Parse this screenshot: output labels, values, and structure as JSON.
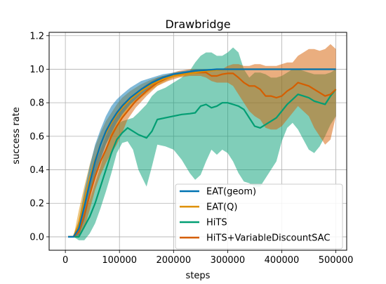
{
  "chart_data": {
    "type": "line",
    "title": "Drawbridge",
    "xlabel": "steps",
    "ylabel": "success rate",
    "xlim": [
      -30000,
      520000
    ],
    "ylim": [
      -0.08,
      1.22
    ],
    "xticks": [
      0,
      100000,
      200000,
      300000,
      400000,
      500000
    ],
    "xtick_labels": [
      "0",
      "100000",
      "200000",
      "300000",
      "400000",
      "500000"
    ],
    "yticks": [
      0.0,
      0.2,
      0.4,
      0.6,
      0.8,
      1.0,
      1.2
    ],
    "ytick_labels": [
      "0.0",
      "0.2",
      "0.4",
      "0.6",
      "0.8",
      "1.0",
      "1.2"
    ],
    "grid": true,
    "legend_position": "lower-right",
    "series": [
      {
        "name": "HiTS",
        "color": "#029e73",
        "x": [
          5000,
          15000,
          25000,
          35000,
          45000,
          55000,
          65000,
          75000,
          85000,
          95000,
          105000,
          115000,
          125000,
          135000,
          150000,
          160000,
          170000,
          185000,
          200000,
          215000,
          230000,
          240000,
          250000,
          260000,
          270000,
          280000,
          290000,
          300000,
          310000,
          320000,
          330000,
          340000,
          350000,
          360000,
          370000,
          380000,
          390000,
          400000,
          410000,
          420000,
          430000,
          440000,
          450000,
          460000,
          470000,
          480000,
          490000,
          500000
        ],
        "values": [
          0.0,
          0.0,
          0.0,
          0.06,
          0.12,
          0.2,
          0.3,
          0.4,
          0.5,
          0.58,
          0.62,
          0.65,
          0.63,
          0.61,
          0.59,
          0.63,
          0.7,
          0.71,
          0.72,
          0.73,
          0.735,
          0.74,
          0.78,
          0.79,
          0.77,
          0.78,
          0.8,
          0.8,
          0.79,
          0.78,
          0.76,
          0.71,
          0.66,
          0.65,
          0.67,
          0.69,
          0.71,
          0.75,
          0.79,
          0.82,
          0.85,
          0.84,
          0.83,
          0.81,
          0.8,
          0.79,
          0.84,
          0.88
        ],
        "lower": [
          0.0,
          0.0,
          -0.02,
          -0.02,
          0.02,
          0.08,
          0.17,
          0.27,
          0.38,
          0.5,
          0.56,
          0.57,
          0.52,
          0.4,
          0.3,
          0.42,
          0.55,
          0.54,
          0.52,
          0.46,
          0.38,
          0.34,
          0.37,
          0.45,
          0.52,
          0.49,
          0.52,
          0.5,
          0.45,
          0.38,
          0.33,
          0.32,
          0.3,
          0.3,
          0.35,
          0.4,
          0.45,
          0.57,
          0.65,
          0.68,
          0.64,
          0.58,
          0.52,
          0.5,
          0.54,
          0.6,
          0.67,
          0.72
        ],
        "upper": [
          0.0,
          0.0,
          0.02,
          0.12,
          0.22,
          0.32,
          0.42,
          0.53,
          0.62,
          0.67,
          0.69,
          0.7,
          0.71,
          0.74,
          0.79,
          0.84,
          0.87,
          0.89,
          0.92,
          0.95,
          0.99,
          1.04,
          1.08,
          1.1,
          1.1,
          1.08,
          1.08,
          1.1,
          1.13,
          1.1,
          1.0,
          0.95,
          0.98,
          0.98,
          0.97,
          0.95,
          0.95,
          0.96,
          0.98,
          1.0,
          1.0,
          0.99,
          0.98,
          0.97,
          0.97,
          0.97,
          0.98,
          1.0
        ]
      },
      {
        "name": "HiTS+VariableDiscountSAC",
        "color": "#d55e00",
        "x": [
          5000,
          15000,
          25000,
          35000,
          45000,
          55000,
          65000,
          75000,
          85000,
          95000,
          105000,
          115000,
          130000,
          150000,
          170000,
          190000,
          210000,
          230000,
          250000,
          260000,
          270000,
          280000,
          290000,
          300000,
          310000,
          320000,
          330000,
          340000,
          350000,
          360000,
          370000,
          380000,
          390000,
          400000,
          410000,
          420000,
          430000,
          440000,
          450000,
          460000,
          470000,
          480000,
          490000,
          500000
        ],
        "values": [
          0.0,
          0.0,
          0.03,
          0.13,
          0.25,
          0.36,
          0.45,
          0.52,
          0.6,
          0.66,
          0.71,
          0.75,
          0.81,
          0.87,
          0.92,
          0.95,
          0.97,
          0.98,
          0.98,
          0.98,
          0.96,
          0.96,
          0.97,
          0.975,
          0.975,
          0.95,
          0.92,
          0.9,
          0.9,
          0.88,
          0.84,
          0.84,
          0.83,
          0.84,
          0.87,
          0.89,
          0.92,
          0.91,
          0.9,
          0.88,
          0.86,
          0.84,
          0.85,
          0.88
        ],
        "lower": [
          0.0,
          0.0,
          0.0,
          0.05,
          0.16,
          0.28,
          0.37,
          0.44,
          0.5,
          0.55,
          0.62,
          0.7,
          0.77,
          0.84,
          0.9,
          0.93,
          0.95,
          0.96,
          0.96,
          0.95,
          0.93,
          0.92,
          0.92,
          0.92,
          0.9,
          0.85,
          0.8,
          0.75,
          0.72,
          0.7,
          0.65,
          0.64,
          0.64,
          0.66,
          0.7,
          0.74,
          0.78,
          0.75,
          0.72,
          0.65,
          0.6,
          0.55,
          0.58,
          0.72
        ],
        "upper": [
          0.0,
          0.0,
          0.08,
          0.22,
          0.34,
          0.44,
          0.52,
          0.6,
          0.68,
          0.75,
          0.79,
          0.82,
          0.86,
          0.91,
          0.95,
          0.97,
          0.99,
          1.0,
          1.0,
          1.0,
          0.99,
          0.99,
          1.0,
          1.02,
          1.03,
          1.03,
          1.02,
          1.02,
          1.03,
          1.03,
          1.02,
          1.02,
          1.02,
          1.03,
          1.04,
          1.04,
          1.08,
          1.1,
          1.12,
          1.12,
          1.11,
          1.12,
          1.15,
          1.12
        ]
      },
      {
        "name": "EAT(Q)",
        "color": "#de8f05",
        "x": [
          5000,
          15000,
          25000,
          35000,
          45000,
          55000,
          65000,
          75000,
          85000,
          95000,
          105000,
          120000,
          140000,
          160000,
          180000,
          200000,
          220000,
          240000,
          260000,
          280000,
          300000,
          320000,
          340000,
          360000,
          380000,
          400000,
          420000,
          440000,
          460000,
          480000,
          500000
        ],
        "values": [
          0.0,
          0.0,
          0.08,
          0.22,
          0.35,
          0.46,
          0.55,
          0.62,
          0.68,
          0.73,
          0.77,
          0.82,
          0.87,
          0.91,
          0.94,
          0.96,
          0.97,
          0.98,
          0.99,
          0.995,
          1.0,
          1.0,
          1.0,
          1.0,
          1.0,
          1.0,
          1.0,
          1.0,
          1.0,
          1.0,
          1.0
        ],
        "lower": [
          0.0,
          0.0,
          0.02,
          0.14,
          0.26,
          0.38,
          0.47,
          0.55,
          0.61,
          0.66,
          0.71,
          0.77,
          0.83,
          0.88,
          0.92,
          0.95,
          0.96,
          0.97,
          0.98,
          0.99,
          0.995,
          1.0,
          1.0,
          1.0,
          1.0,
          1.0,
          1.0,
          1.0,
          1.0,
          1.0,
          1.0
        ],
        "upper": [
          0.0,
          0.0,
          0.16,
          0.3,
          0.43,
          0.54,
          0.62,
          0.69,
          0.74,
          0.79,
          0.83,
          0.87,
          0.91,
          0.94,
          0.96,
          0.97,
          0.98,
          0.99,
          1.0,
          1.0,
          1.0,
          1.0,
          1.0,
          1.0,
          1.0,
          1.0,
          1.0,
          1.0,
          1.0,
          1.0,
          1.0
        ]
      },
      {
        "name": "EAT(geom)",
        "color": "#0173b2",
        "x": [
          5000,
          15000,
          25000,
          35000,
          45000,
          55000,
          65000,
          75000,
          85000,
          95000,
          105000,
          120000,
          140000,
          160000,
          180000,
          200000,
          220000,
          240000,
          260000,
          280000,
          300000,
          320000,
          340000,
          360000,
          380000,
          400000,
          420000,
          440000,
          460000,
          480000,
          500000
        ],
        "values": [
          0.0,
          0.0,
          0.05,
          0.18,
          0.32,
          0.45,
          0.55,
          0.63,
          0.69,
          0.74,
          0.78,
          0.83,
          0.88,
          0.92,
          0.95,
          0.97,
          0.98,
          0.99,
          0.995,
          1.0,
          1.0,
          1.0,
          1.0,
          1.0,
          1.0,
          1.0,
          1.0,
          1.0,
          1.0,
          1.0,
          1.0
        ],
        "lower": [
          0.0,
          0.0,
          0.01,
          0.1,
          0.23,
          0.36,
          0.46,
          0.55,
          0.62,
          0.68,
          0.73,
          0.79,
          0.85,
          0.9,
          0.93,
          0.96,
          0.97,
          0.98,
          0.99,
          1.0,
          1.0,
          1.0,
          1.0,
          1.0,
          1.0,
          1.0,
          1.0,
          1.0,
          1.0,
          1.0,
          1.0
        ],
        "upper": [
          0.0,
          0.0,
          0.1,
          0.27,
          0.42,
          0.55,
          0.64,
          0.72,
          0.78,
          0.82,
          0.85,
          0.89,
          0.93,
          0.95,
          0.97,
          0.98,
          0.99,
          1.0,
          1.0,
          1.0,
          1.0,
          1.0,
          1.0,
          1.0,
          1.0,
          1.0,
          1.0,
          1.0,
          1.0,
          1.0,
          1.0
        ]
      }
    ],
    "legend_order": [
      "EAT(geom)",
      "EAT(Q)",
      "HiTS",
      "HiTS+VariableDiscountSAC"
    ]
  }
}
